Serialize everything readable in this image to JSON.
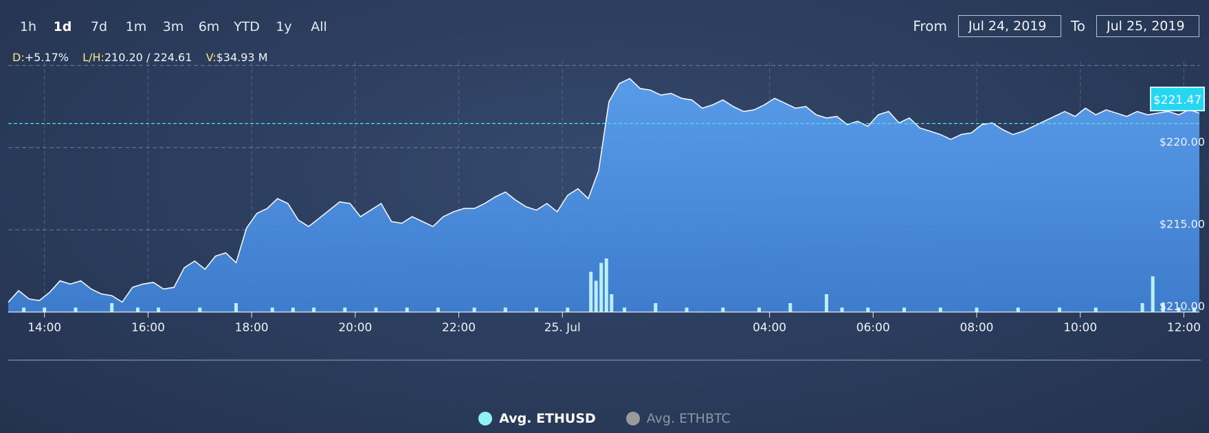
{
  "range_selector": {
    "buttons": [
      "1h",
      "1d",
      "7d",
      "1m",
      "3m",
      "6m",
      "YTD",
      "1y",
      "All"
    ],
    "active": "1d"
  },
  "date_range": {
    "from_label": "From",
    "from_value": "Jul 24, 2019",
    "to_label": "To",
    "to_value": "Jul 25, 2019"
  },
  "stats": {
    "d_label": "D:",
    "d_value": "+5.17%",
    "lh_label": "L/H:",
    "lh_value": "210.20 / 224.61",
    "v_label": "V:",
    "v_value": "$34.93 M"
  },
  "current_price_label": "$221.47",
  "legend": {
    "items": [
      {
        "label": "Avg. ETHUSD",
        "active": true,
        "color": "#8ff3f6"
      },
      {
        "label": "Avg. ETHBTC",
        "active": false,
        "color": "#9a9a9a"
      }
    ]
  },
  "colors": {
    "area_top": "#5a9ff0",
    "area_bottom": "#3f7fd2",
    "line": "#f2f6ff",
    "volume": "#c8fbff",
    "grid": "#7f8fb0",
    "current_line": "#4ee3f5"
  },
  "chart_data": {
    "type": "area",
    "x_unit": "hours since Jul 24 00:00",
    "x_range": [
      13.3,
      36.3
    ],
    "y_range": [
      210,
      224
    ],
    "y_ticks": [
      210,
      215,
      220
    ],
    "y_tick_labels": [
      "$210.00",
      "$215.00",
      "$220.00"
    ],
    "y_gridlines": [
      210,
      215,
      220,
      225
    ],
    "x_ticks": [
      14,
      16,
      18,
      20,
      22,
      24,
      28,
      30,
      32,
      34,
      36
    ],
    "x_tick_labels": [
      "14:00",
      "16:00",
      "18:00",
      "20:00",
      "22:00",
      "25. Jul",
      "04:00",
      "06:00",
      "08:00",
      "10:00",
      "12:00"
    ],
    "current_price": 221.47,
    "series": [
      {
        "name": "Avg. ETHUSD",
        "points": [
          [
            13.3,
            210.6
          ],
          [
            13.5,
            211.3
          ],
          [
            13.7,
            210.8
          ],
          [
            13.9,
            210.7
          ],
          [
            14.1,
            211.2
          ],
          [
            14.3,
            211.9
          ],
          [
            14.5,
            211.7
          ],
          [
            14.7,
            211.9
          ],
          [
            14.9,
            211.4
          ],
          [
            15.1,
            211.1
          ],
          [
            15.3,
            211.0
          ],
          [
            15.5,
            210.6
          ],
          [
            15.7,
            211.5
          ],
          [
            15.9,
            211.7
          ],
          [
            16.1,
            211.8
          ],
          [
            16.3,
            211.4
          ],
          [
            16.5,
            211.5
          ],
          [
            16.7,
            212.7
          ],
          [
            16.9,
            213.1
          ],
          [
            17.1,
            212.6
          ],
          [
            17.3,
            213.4
          ],
          [
            17.5,
            213.6
          ],
          [
            17.7,
            213.0
          ],
          [
            17.9,
            215.1
          ],
          [
            18.1,
            216.0
          ],
          [
            18.3,
            216.3
          ],
          [
            18.5,
            216.9
          ],
          [
            18.7,
            216.6
          ],
          [
            18.9,
            215.6
          ],
          [
            19.1,
            215.2
          ],
          [
            19.3,
            215.7
          ],
          [
            19.5,
            216.2
          ],
          [
            19.7,
            216.7
          ],
          [
            19.9,
            216.6
          ],
          [
            20.1,
            215.8
          ],
          [
            20.3,
            216.2
          ],
          [
            20.5,
            216.6
          ],
          [
            20.7,
            215.5
          ],
          [
            20.9,
            215.4
          ],
          [
            21.1,
            215.8
          ],
          [
            21.3,
            215.5
          ],
          [
            21.5,
            215.2
          ],
          [
            21.7,
            215.8
          ],
          [
            21.9,
            216.1
          ],
          [
            22.1,
            216.3
          ],
          [
            22.3,
            216.3
          ],
          [
            22.5,
            216.6
          ],
          [
            22.7,
            217.0
          ],
          [
            22.9,
            217.3
          ],
          [
            23.1,
            216.8
          ],
          [
            23.3,
            216.4
          ],
          [
            23.5,
            216.2
          ],
          [
            23.7,
            216.6
          ],
          [
            23.9,
            216.1
          ],
          [
            24.1,
            217.1
          ],
          [
            24.3,
            217.5
          ],
          [
            24.5,
            216.9
          ],
          [
            24.7,
            218.6
          ],
          [
            24.9,
            222.8
          ],
          [
            25.1,
            223.9
          ],
          [
            25.3,
            224.2
          ],
          [
            25.5,
            223.6
          ],
          [
            25.7,
            223.5
          ],
          [
            25.9,
            223.2
          ],
          [
            26.1,
            223.3
          ],
          [
            26.3,
            223.0
          ],
          [
            26.5,
            222.9
          ],
          [
            26.7,
            222.4
          ],
          [
            26.9,
            222.6
          ],
          [
            27.1,
            222.9
          ],
          [
            27.3,
            222.5
          ],
          [
            27.5,
            222.2
          ],
          [
            27.7,
            222.3
          ],
          [
            27.9,
            222.6
          ],
          [
            28.1,
            223.0
          ],
          [
            28.3,
            222.7
          ],
          [
            28.5,
            222.4
          ],
          [
            28.7,
            222.5
          ],
          [
            28.9,
            222.0
          ],
          [
            29.1,
            221.8
          ],
          [
            29.3,
            221.9
          ],
          [
            29.5,
            221.4
          ],
          [
            29.7,
            221.6
          ],
          [
            29.9,
            221.3
          ],
          [
            30.1,
            222.0
          ],
          [
            30.3,
            222.2
          ],
          [
            30.5,
            221.5
          ],
          [
            30.7,
            221.8
          ],
          [
            30.9,
            221.2
          ],
          [
            31.1,
            221.0
          ],
          [
            31.3,
            220.8
          ],
          [
            31.5,
            220.5
          ],
          [
            31.7,
            220.8
          ],
          [
            31.9,
            220.9
          ],
          [
            32.1,
            221.4
          ],
          [
            32.3,
            221.5
          ],
          [
            32.5,
            221.1
          ],
          [
            32.7,
            220.8
          ],
          [
            32.9,
            221.0
          ],
          [
            33.1,
            221.3
          ],
          [
            33.3,
            221.6
          ],
          [
            33.5,
            221.9
          ],
          [
            33.7,
            222.2
          ],
          [
            33.9,
            221.9
          ],
          [
            34.1,
            222.4
          ],
          [
            34.3,
            222.0
          ],
          [
            34.5,
            222.3
          ],
          [
            34.7,
            222.1
          ],
          [
            34.9,
            221.9
          ],
          [
            35.1,
            222.2
          ],
          [
            35.3,
            222.0
          ],
          [
            35.5,
            222.1
          ],
          [
            35.7,
            222.2
          ],
          [
            35.9,
            222.0
          ],
          [
            36.1,
            222.3
          ],
          [
            36.3,
            222.1
          ]
        ]
      }
    ],
    "volume_series": {
      "name": "Volume",
      "x": [
        13.6,
        14.0,
        14.6,
        15.3,
        15.8,
        16.2,
        17.0,
        17.7,
        18.4,
        18.8,
        19.2,
        19.8,
        20.4,
        21.0,
        21.6,
        22.3,
        22.9,
        23.5,
        24.1,
        24.55,
        24.65,
        24.75,
        24.85,
        24.95,
        25.2,
        25.8,
        26.4,
        27.1,
        27.8,
        28.4,
        29.1,
        29.4,
        29.9,
        30.6,
        31.3,
        32.0,
        32.8,
        33.6,
        34.3,
        35.2,
        35.4,
        35.6,
        35.9,
        36.2
      ],
      "values": [
        1,
        1,
        1,
        2,
        1,
        1,
        1,
        2,
        1,
        1,
        1,
        1,
        1,
        1,
        1,
        1,
        1,
        1,
        1,
        9,
        7,
        11,
        12,
        4,
        1,
        2,
        1,
        1,
        1,
        2,
        4,
        1,
        1,
        1,
        1,
        1,
        1,
        1,
        1,
        2,
        8,
        2,
        1,
        1
      ]
    }
  }
}
